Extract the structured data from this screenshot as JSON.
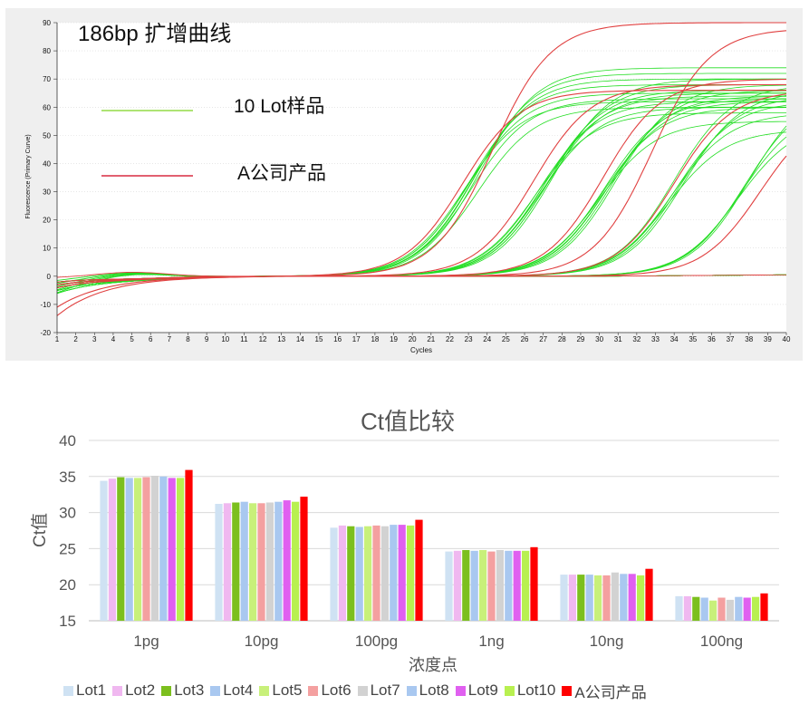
{
  "chart_data": [
    {
      "type": "line",
      "title": "186bp  扩增曲线",
      "xlabel": "Cycles",
      "ylabel": "Fluorescence (Primary Curve)",
      "xlim": [
        1,
        40
      ],
      "ylim": [
        -20,
        90
      ],
      "x_ticks": [
        1,
        2,
        3,
        4,
        5,
        6,
        7,
        8,
        9,
        10,
        11,
        12,
        13,
        14,
        15,
        16,
        17,
        18,
        19,
        20,
        21,
        22,
        23,
        24,
        25,
        26,
        27,
        28,
        29,
        30,
        31,
        32,
        33,
        34,
        35,
        36,
        37,
        38,
        39,
        40
      ],
      "y_ticks": [
        -20,
        -10,
        0,
        10,
        20,
        30,
        40,
        50,
        60,
        70,
        80,
        90
      ],
      "grid": true,
      "legend_placement": "top-left",
      "series": [
        {
          "name": "10 Lot样品",
          "color": "#7ed321",
          "label": "10 Lot样品"
        },
        {
          "name": "A公司产品",
          "color": "#d0021b",
          "label": "A公司产品"
        }
      ],
      "curve_groups": [
        {
          "series": "10 Lot样品",
          "color": "#22dd22",
          "midpoints": [
            22.8,
            23.0,
            23.1,
            23.3,
            23.4,
            23.6,
            23.2,
            23.5
          ],
          "plateaus": [
            62,
            65,
            68,
            70,
            72,
            74,
            63,
            60
          ],
          "start": -3
        },
        {
          "series": "10 Lot样品",
          "color": "#22dd22",
          "midpoints": [
            26.6,
            26.8,
            27.0,
            27.1,
            27.3,
            27.5,
            26.9,
            27.2
          ],
          "plateaus": [
            58,
            62,
            64,
            66,
            68,
            70,
            60,
            65
          ],
          "start": -2
        },
        {
          "series": "10 Lot样品",
          "color": "#22dd22",
          "midpoints": [
            30.0,
            30.2,
            30.4,
            30.5,
            30.7,
            30.9,
            30.3
          ],
          "plateaus": [
            55,
            60,
            62,
            64,
            66,
            68,
            63
          ],
          "start": -4
        },
        {
          "series": "10 Lot样品",
          "color": "#22dd22",
          "midpoints": [
            33.7,
            33.9,
            34.1,
            34.3,
            34.5,
            34.0
          ],
          "plateaus": [
            52,
            58,
            62,
            64,
            66,
            68
          ],
          "start": -5
        },
        {
          "series": "10 Lot样品",
          "color": "#22dd22",
          "midpoints": [
            37.4,
            37.6,
            37.8,
            38.0
          ],
          "plateaus": [
            55,
            60,
            65,
            68
          ],
          "start": -6
        },
        {
          "series": "A公司产品",
          "color": "#e04040",
          "midpoints": [
            24.3
          ],
          "plateaus": [
            90
          ],
          "start": -14
        },
        {
          "series": "A公司产品",
          "color": "#e04040",
          "midpoints": [
            22.7
          ],
          "plateaus": [
            66
          ],
          "start": -11
        },
        {
          "series": "A公司产品",
          "color": "#e04040",
          "midpoints": [
            26.5,
            30.2
          ],
          "plateaus": [
            68,
            70
          ],
          "start": -4
        },
        {
          "series": "A公司产品",
          "color": "#e04040",
          "midpoints": [
            32.8
          ],
          "plateaus": [
            88
          ],
          "start": -2
        },
        {
          "series": "A公司产品",
          "color": "#e04040",
          "midpoints": [
            34.0,
            38.6
          ],
          "plateaus": [
            66,
            60
          ],
          "start": -3
        }
      ]
    },
    {
      "type": "bar",
      "title": "Ct值比较",
      "xlabel": "浓度点",
      "ylabel": "Ct值",
      "ylim": [
        15,
        40
      ],
      "y_ticks": [
        15,
        20,
        25,
        30,
        35,
        40
      ],
      "grid": true,
      "legend_placement": "bottom",
      "categories": [
        "1pg",
        "10pg",
        "100pg",
        "1ng",
        "10ng",
        "100ng"
      ],
      "series": [
        {
          "name": "Lot1",
          "color": "#cfe2f3",
          "values": [
            34.4,
            31.2,
            27.9,
            24.6,
            21.4,
            18.4
          ]
        },
        {
          "name": "Lot2",
          "color": "#f0b8f0",
          "values": [
            34.7,
            31.3,
            28.2,
            24.7,
            21.4,
            18.4
          ]
        },
        {
          "name": "Lot3",
          "color": "#7cbf1e",
          "values": [
            34.9,
            31.4,
            28.1,
            24.8,
            21.4,
            18.3
          ]
        },
        {
          "name": "Lot4",
          "color": "#a9c8f0",
          "values": [
            34.8,
            31.5,
            28.0,
            24.7,
            21.4,
            18.2
          ]
        },
        {
          "name": "Lot5",
          "color": "#c8f07a",
          "values": [
            34.8,
            31.3,
            28.1,
            24.8,
            21.3,
            17.8
          ]
        },
        {
          "name": "Lot6",
          "color": "#f4a0a0",
          "values": [
            34.9,
            31.3,
            28.2,
            24.6,
            21.3,
            18.2
          ]
        },
        {
          "name": "Lot7",
          "color": "#d2d2d2",
          "values": [
            35.1,
            31.4,
            28.1,
            24.8,
            21.7,
            17.9
          ]
        },
        {
          "name": "Lot8",
          "color": "#a9c8f0",
          "values": [
            35.0,
            31.5,
            28.3,
            24.7,
            21.5,
            18.3
          ]
        },
        {
          "name": "Lot9",
          "color": "#e060f0",
          "values": [
            34.8,
            31.7,
            28.3,
            24.7,
            21.5,
            18.2
          ]
        },
        {
          "name": "Lot10",
          "color": "#b8f050",
          "values": [
            34.8,
            31.5,
            28.2,
            24.7,
            21.3,
            18.3
          ]
        },
        {
          "name": "A公司产品",
          "color": "#ff0000",
          "values": [
            35.9,
            32.2,
            29.0,
            25.2,
            22.2,
            18.8
          ]
        }
      ]
    }
  ]
}
